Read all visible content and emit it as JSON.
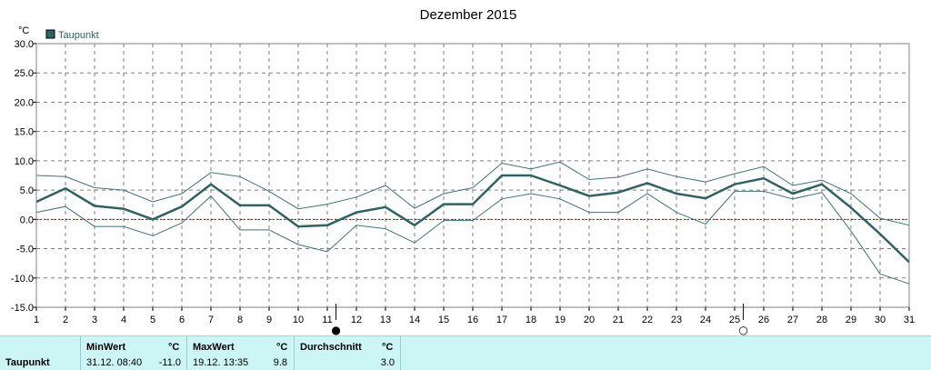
{
  "chart_data": {
    "type": "line",
    "title": "Dezember 2015",
    "ylabel": "°C",
    "xlabel": "",
    "ylim": [
      -15,
      30
    ],
    "yticks": [
      "30.0",
      "25.0",
      "20.0",
      "15.0",
      "10.0",
      "5.0",
      "0.0",
      "-5.0",
      "-10.0",
      "-15.0"
    ],
    "x": [
      1,
      2,
      3,
      4,
      5,
      6,
      7,
      8,
      9,
      10,
      11,
      12,
      13,
      14,
      15,
      16,
      17,
      18,
      19,
      20,
      21,
      22,
      23,
      24,
      25,
      26,
      27,
      28,
      29,
      30,
      31
    ],
    "grid": true,
    "legend": "top-left",
    "series": [
      {
        "name": "Taupunkt",
        "values": [
          3.0,
          5.3,
          2.3,
          1.8,
          0.0,
          2.2,
          6.0,
          2.4,
          2.4,
          -1.2,
          -1.0,
          1.2,
          2.1,
          -1.0,
          2.6,
          2.6,
          7.5,
          7.5,
          5.8,
          4.0,
          4.6,
          6.2,
          4.4,
          3.6,
          6.0,
          7.0,
          4.4,
          6.0,
          2.0,
          -2.5,
          -7.3
        ]
      },
      {
        "name": "",
        "values": [
          7.5,
          7.3,
          5.4,
          5.0,
          3.0,
          4.4,
          8.0,
          7.3,
          4.8,
          1.8,
          2.6,
          3.8,
          5.8,
          1.9,
          4.4,
          5.4,
          9.6,
          8.6,
          9.8,
          6.8,
          7.2,
          8.6,
          7.3,
          6.4,
          7.8,
          9.0,
          5.8,
          6.7,
          4.4,
          0.2,
          -1.0
        ]
      },
      {
        "name": "",
        "values": [
          1.2,
          2.2,
          -1.2,
          -1.2,
          -2.8,
          -0.6,
          4.0,
          -1.8,
          -1.8,
          -4.3,
          -5.5,
          -1.0,
          -1.6,
          -4.0,
          -0.2,
          -0.2,
          3.5,
          4.4,
          3.5,
          1.2,
          1.2,
          4.4,
          1.2,
          -0.8,
          4.8,
          4.8,
          3.5,
          4.6,
          -2.0,
          -9.3,
          -11.0
        ]
      }
    ],
    "reference_line": 0,
    "moon_phases": [
      {
        "day": 11.3,
        "symbol": "●"
      },
      {
        "day": 25.3,
        "symbol": "○"
      }
    ]
  },
  "colors": {
    "main": "#2f6262",
    "minmax": "#3f7474",
    "grid": "#808080",
    "zero": "#cc0000",
    "summary_bg": "#ccf5f5"
  },
  "summary": {
    "label": "Taupunkt",
    "min": {
      "head": "MinWert",
      "unit": "°C",
      "time": "31.12.  08:40",
      "value": "-11.0"
    },
    "max": {
      "head": "MaxWert",
      "unit": "°C",
      "time": "19.12.  13:35",
      "value": "9.8"
    },
    "avg": {
      "head": "Durchschnitt",
      "unit": "°C",
      "value": "3.0"
    }
  }
}
